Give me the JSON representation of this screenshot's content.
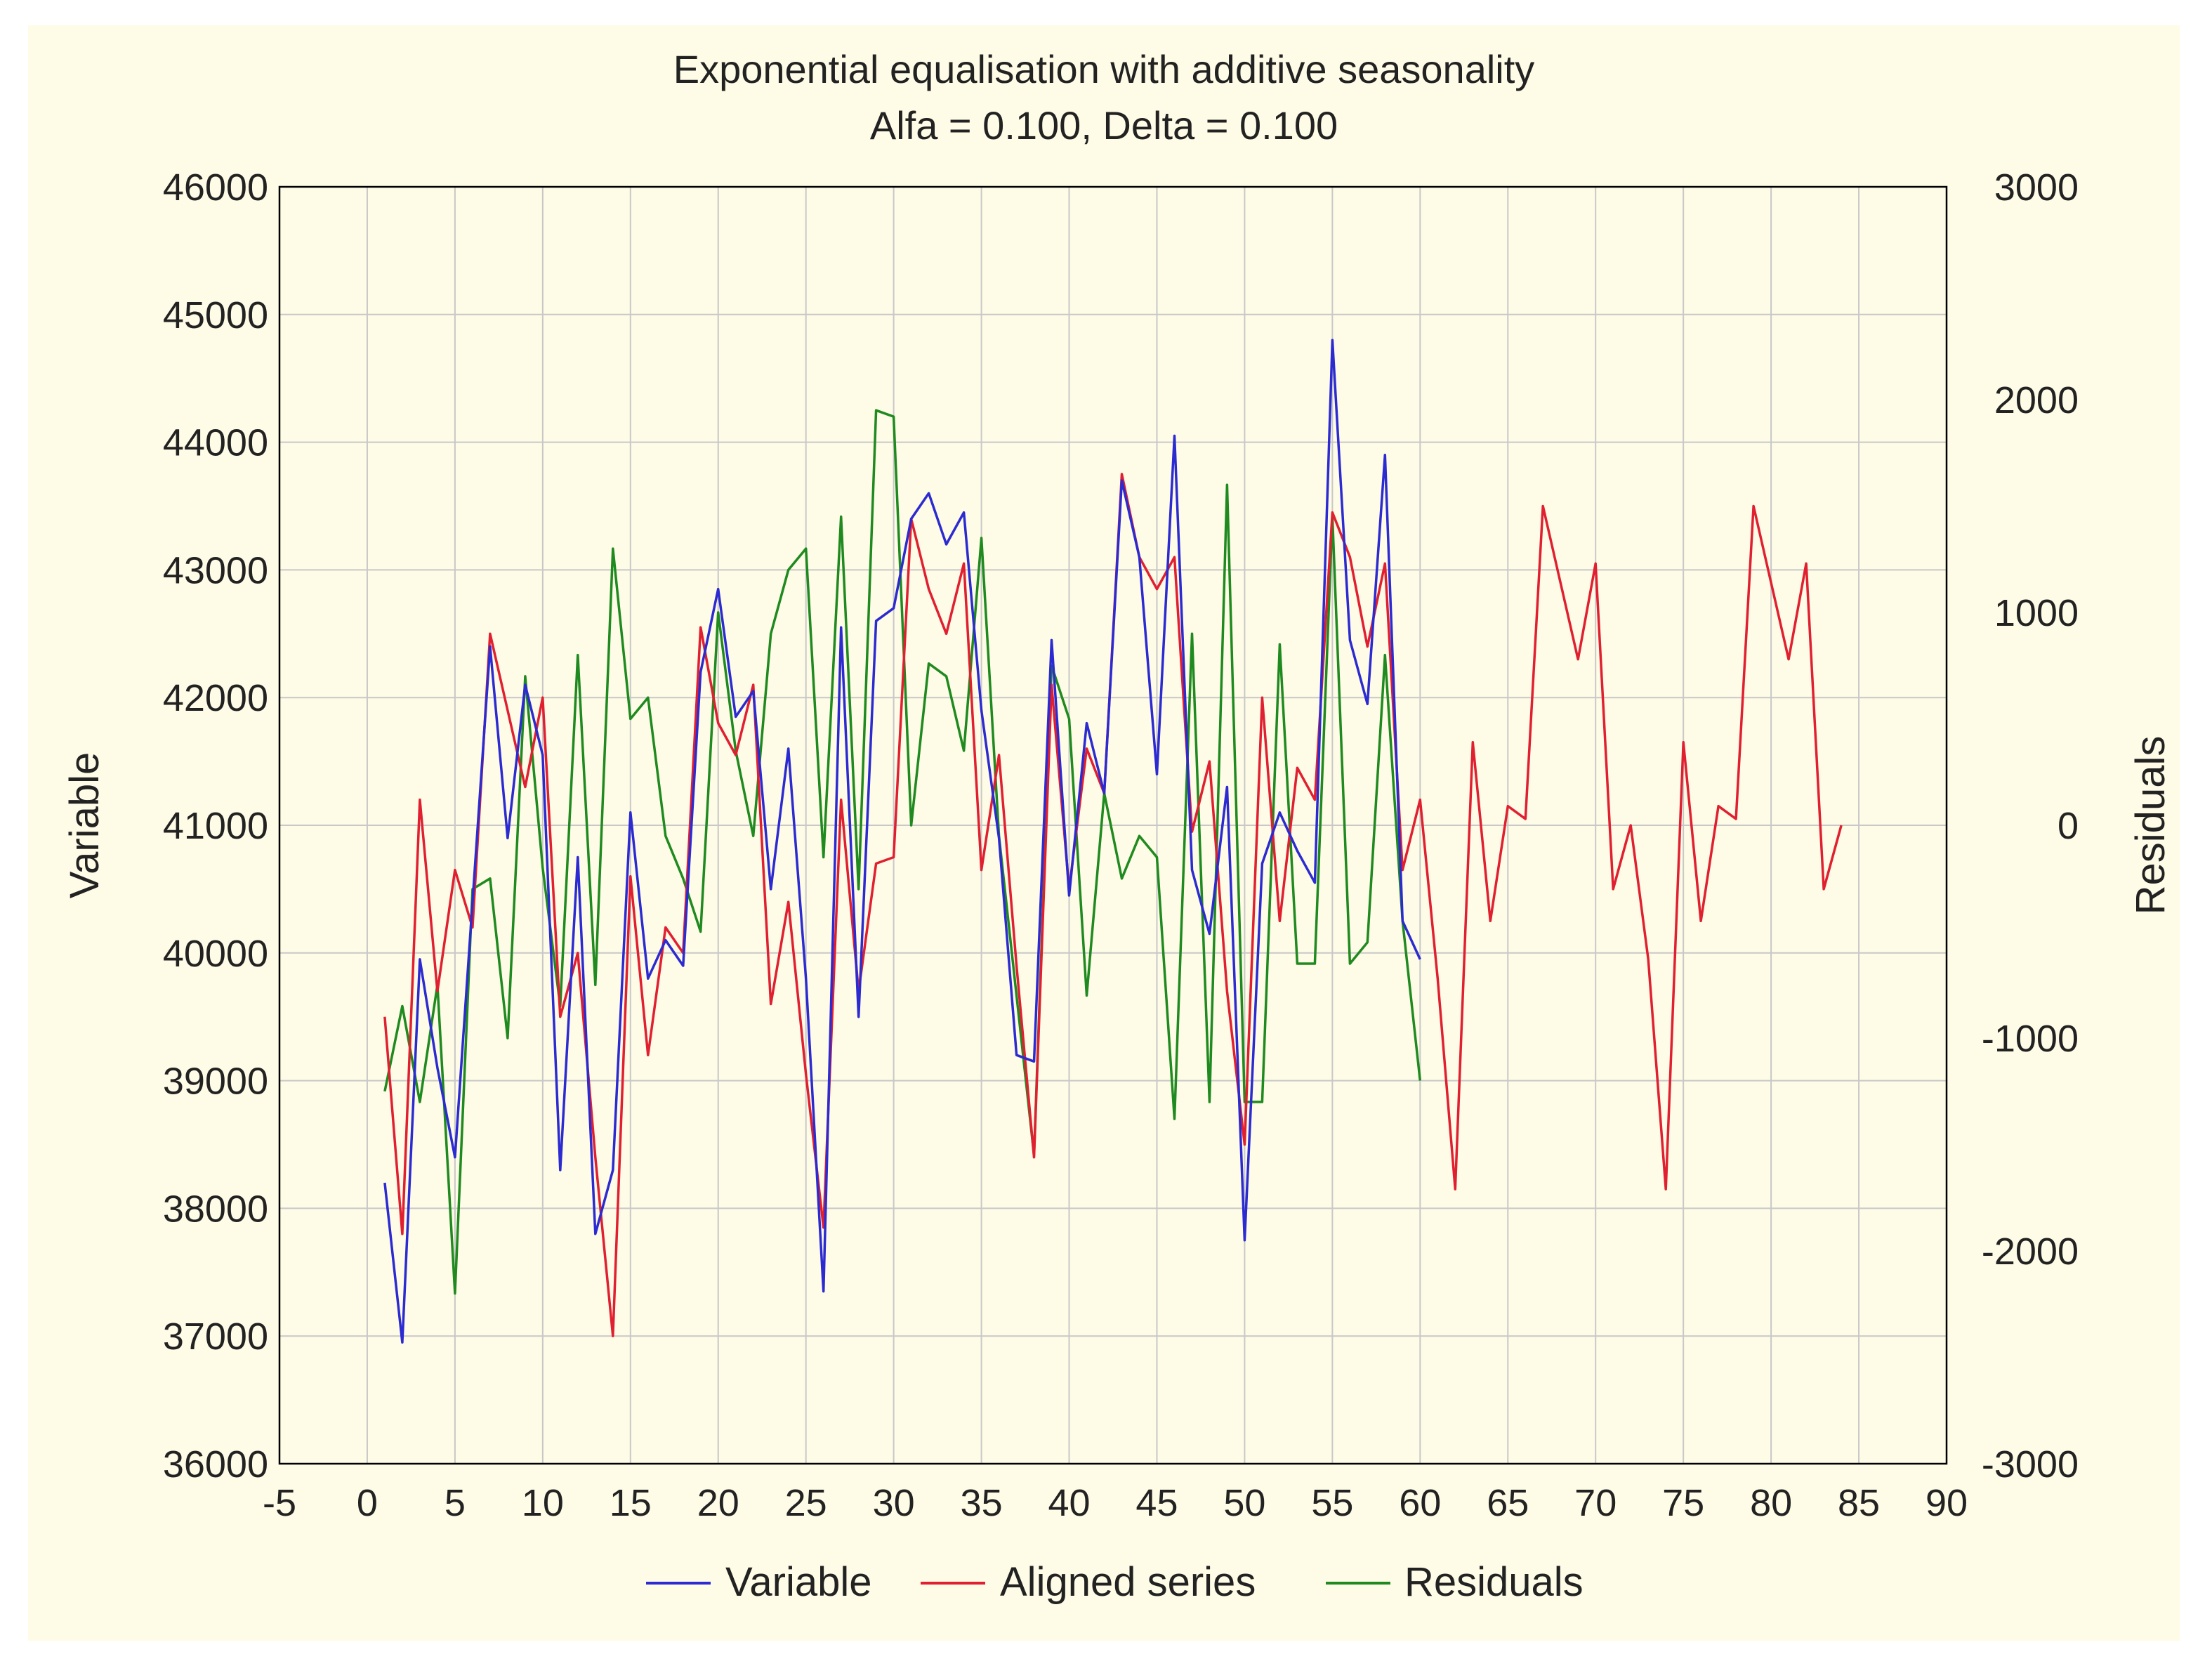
{
  "chart_data": {
    "type": "line",
    "title": "Exponential equalisation with additive seasonality",
    "subtitle": "Alfa = 0.100, Delta = 0.100",
    "xlabel": "",
    "ylabel": "Variable",
    "y2label": "Residuals",
    "xlim": [
      -5,
      90
    ],
    "ylim": [
      36000,
      46000
    ],
    "y2lim": [
      -3000,
      3000
    ],
    "xticks": [
      "-5",
      "0",
      "5",
      "10",
      "15",
      "20",
      "25",
      "30",
      "35",
      "40",
      "45",
      "50",
      "55",
      "60",
      "65",
      "70",
      "75",
      "80",
      "85",
      "90"
    ],
    "yticks": [
      "36000",
      "37000",
      "38000",
      "39000",
      "40000",
      "41000",
      "42000",
      "43000",
      "44000",
      "45000",
      "46000"
    ],
    "y2ticks": [
      "-3000",
      "-2000",
      "-1000",
      "0",
      "1000",
      "2000",
      "3000"
    ],
    "grid": true,
    "legend_position": "bottom",
    "series": [
      {
        "name": "Variable",
        "axis": "left",
        "color": "#2b2bd1",
        "x": [
          1,
          2,
          3,
          4,
          5,
          6,
          7,
          8,
          9,
          10,
          11,
          12,
          13,
          14,
          15,
          16,
          17,
          18,
          19,
          20,
          21,
          22,
          23,
          24,
          25,
          26,
          27,
          28,
          29,
          30,
          31,
          32,
          33,
          34,
          35,
          36,
          37,
          38,
          39,
          40,
          41,
          42,
          43,
          44,
          45,
          46,
          47,
          48,
          49,
          50,
          51,
          52,
          53,
          54,
          55,
          56,
          57,
          58,
          59,
          60
        ],
        "values": [
          38200,
          36950,
          39950,
          39100,
          38400,
          40400,
          42400,
          40900,
          42100,
          41550,
          38300,
          40750,
          37800,
          38300,
          41100,
          39800,
          40100,
          39900,
          42200,
          42850,
          41850,
          42050,
          40500,
          41600,
          39800,
          37350,
          42550,
          39500,
          42600,
          42700,
          43400,
          43600,
          43200,
          43450,
          41900,
          40900,
          39200,
          39150,
          42450,
          40450,
          41800,
          41250,
          43700,
          43100,
          41400,
          44050,
          40650,
          40150,
          41300,
          37750,
          40700,
          41100,
          40800,
          40550,
          44800,
          42450,
          41950,
          43900,
          40250,
          39950
        ]
      },
      {
        "name": "Aligned series",
        "axis": "left",
        "color": "#e02030",
        "x": [
          1,
          2,
          3,
          4,
          5,
          6,
          7,
          8,
          9,
          10,
          11,
          12,
          13,
          14,
          15,
          16,
          17,
          18,
          19,
          20,
          21,
          22,
          23,
          24,
          25,
          26,
          27,
          28,
          29,
          30,
          31,
          32,
          33,
          34,
          35,
          36,
          37,
          38,
          39,
          40,
          41,
          42,
          43,
          44,
          45,
          46,
          47,
          48,
          49,
          50,
          51,
          52,
          53,
          54,
          55,
          56,
          57,
          58,
          59,
          60,
          61,
          62,
          63,
          64,
          65,
          66,
          67,
          68,
          69,
          70,
          71,
          72,
          73,
          74,
          75,
          76,
          77,
          78,
          79,
          80,
          81,
          82,
          83,
          84
        ],
        "values": [
          39500,
          37800,
          41200,
          39700,
          40650,
          40200,
          42500,
          41900,
          41300,
          42000,
          39500,
          40000,
          38400,
          37000,
          40600,
          39200,
          40200,
          40000,
          42550,
          41800,
          41550,
          42100,
          39600,
          40400,
          39050,
          37850,
          41200,
          39700,
          40700,
          40750,
          43400,
          42850,
          42500,
          43050,
          40650,
          41550,
          39900,
          38400,
          42100,
          40500,
          41600,
          41250,
          43750,
          43100,
          42850,
          43100,
          40950,
          41500,
          39700,
          38500,
          42000,
          40250,
          41450,
          41200,
          43450,
          43100,
          42400,
          43050,
          40650,
          41200,
          39800,
          38150,
          41650,
          40250,
          41150,
          41050,
          43500,
          42900,
          42300,
          43050,
          40500,
          41000,
          39950,
          38150,
          41650,
          40250,
          41150,
          41050,
          43500,
          42900,
          42300,
          43050,
          40500,
          41000
        ]
      },
      {
        "name": "Residuals",
        "axis": "right",
        "color": "#1f8a1f",
        "x": [
          1,
          2,
          3,
          4,
          5,
          6,
          7,
          8,
          9,
          10,
          11,
          12,
          13,
          14,
          15,
          16,
          17,
          18,
          19,
          20,
          21,
          22,
          23,
          24,
          25,
          26,
          27,
          28,
          29,
          30,
          31,
          32,
          33,
          34,
          35,
          36,
          37,
          38,
          39,
          40,
          41,
          42,
          43,
          44,
          45,
          46,
          47,
          48,
          49,
          50,
          51,
          52,
          53,
          54,
          55,
          56,
          57,
          58,
          59,
          60
        ],
        "values": [
          -1250,
          -850,
          -1300,
          -750,
          -2200,
          -300,
          -250,
          -1000,
          700,
          -200,
          -850,
          800,
          -750,
          1300,
          500,
          600,
          -50,
          -250,
          -500,
          1000,
          350,
          -50,
          900,
          1200,
          1300,
          -150,
          1450,
          -300,
          1950,
          1920,
          0,
          760,
          700,
          350,
          1350,
          -50,
          -800,
          -1550,
          750,
          500,
          -800,
          150,
          -250,
          -50,
          -150,
          -1380,
          900,
          -1300,
          1600,
          -1300,
          -1300,
          850,
          -650,
          -650,
          1450,
          -650,
          -550,
          800,
          -450,
          -1200
        ]
      }
    ]
  }
}
